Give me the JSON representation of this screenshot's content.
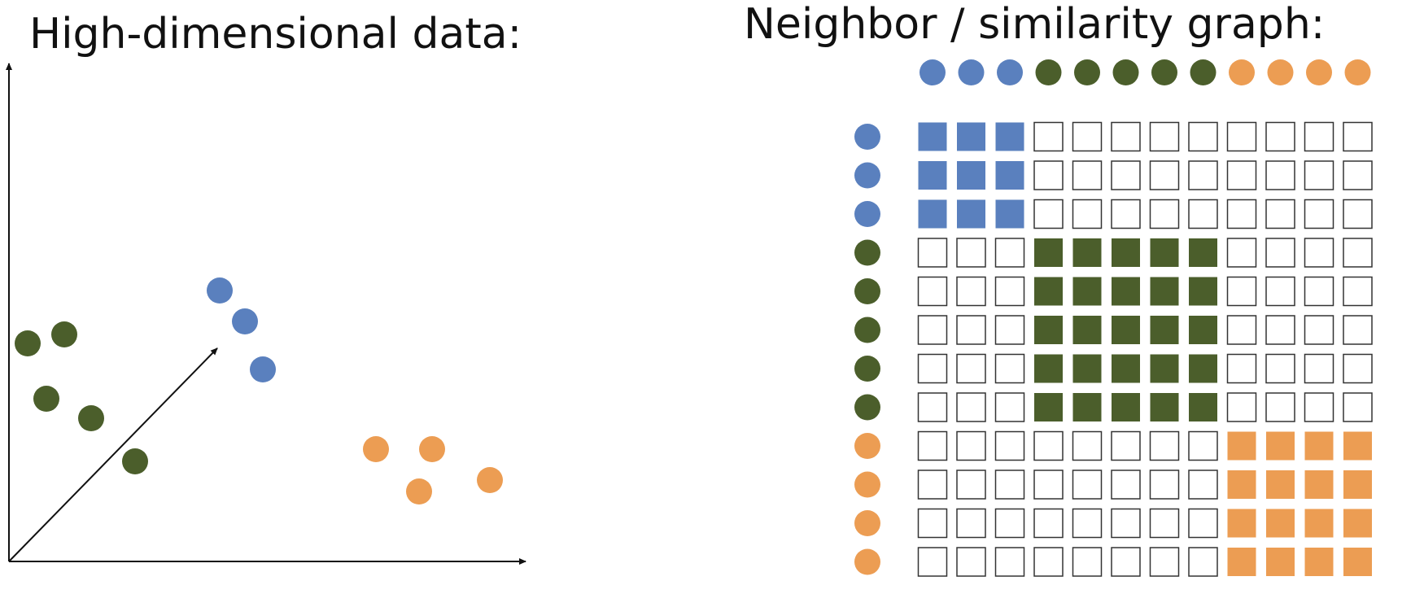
{
  "left": {
    "title": "High-dimensional data:",
    "points": [
      {
        "cluster": "green"
      },
      {
        "cluster": "green"
      },
      {
        "cluster": "green"
      },
      {
        "cluster": "green"
      },
      {
        "cluster": "green"
      },
      {
        "cluster": "blue"
      },
      {
        "cluster": "blue"
      },
      {
        "cluster": "blue"
      },
      {
        "cluster": "orange"
      },
      {
        "cluster": "orange"
      },
      {
        "cluster": "orange"
      },
      {
        "cluster": "orange"
      }
    ]
  },
  "right": {
    "title": "Neighbor / similarity graph:",
    "node_order": [
      "blue",
      "blue",
      "blue",
      "green",
      "green",
      "green",
      "green",
      "green",
      "orange",
      "orange",
      "orange",
      "orange"
    ]
  },
  "colors": {
    "blue": "#5a80be",
    "green": "#4b5e2b",
    "orange": "#ec9d53",
    "axis": "#111111",
    "empty_cell_border": "#333333"
  }
}
